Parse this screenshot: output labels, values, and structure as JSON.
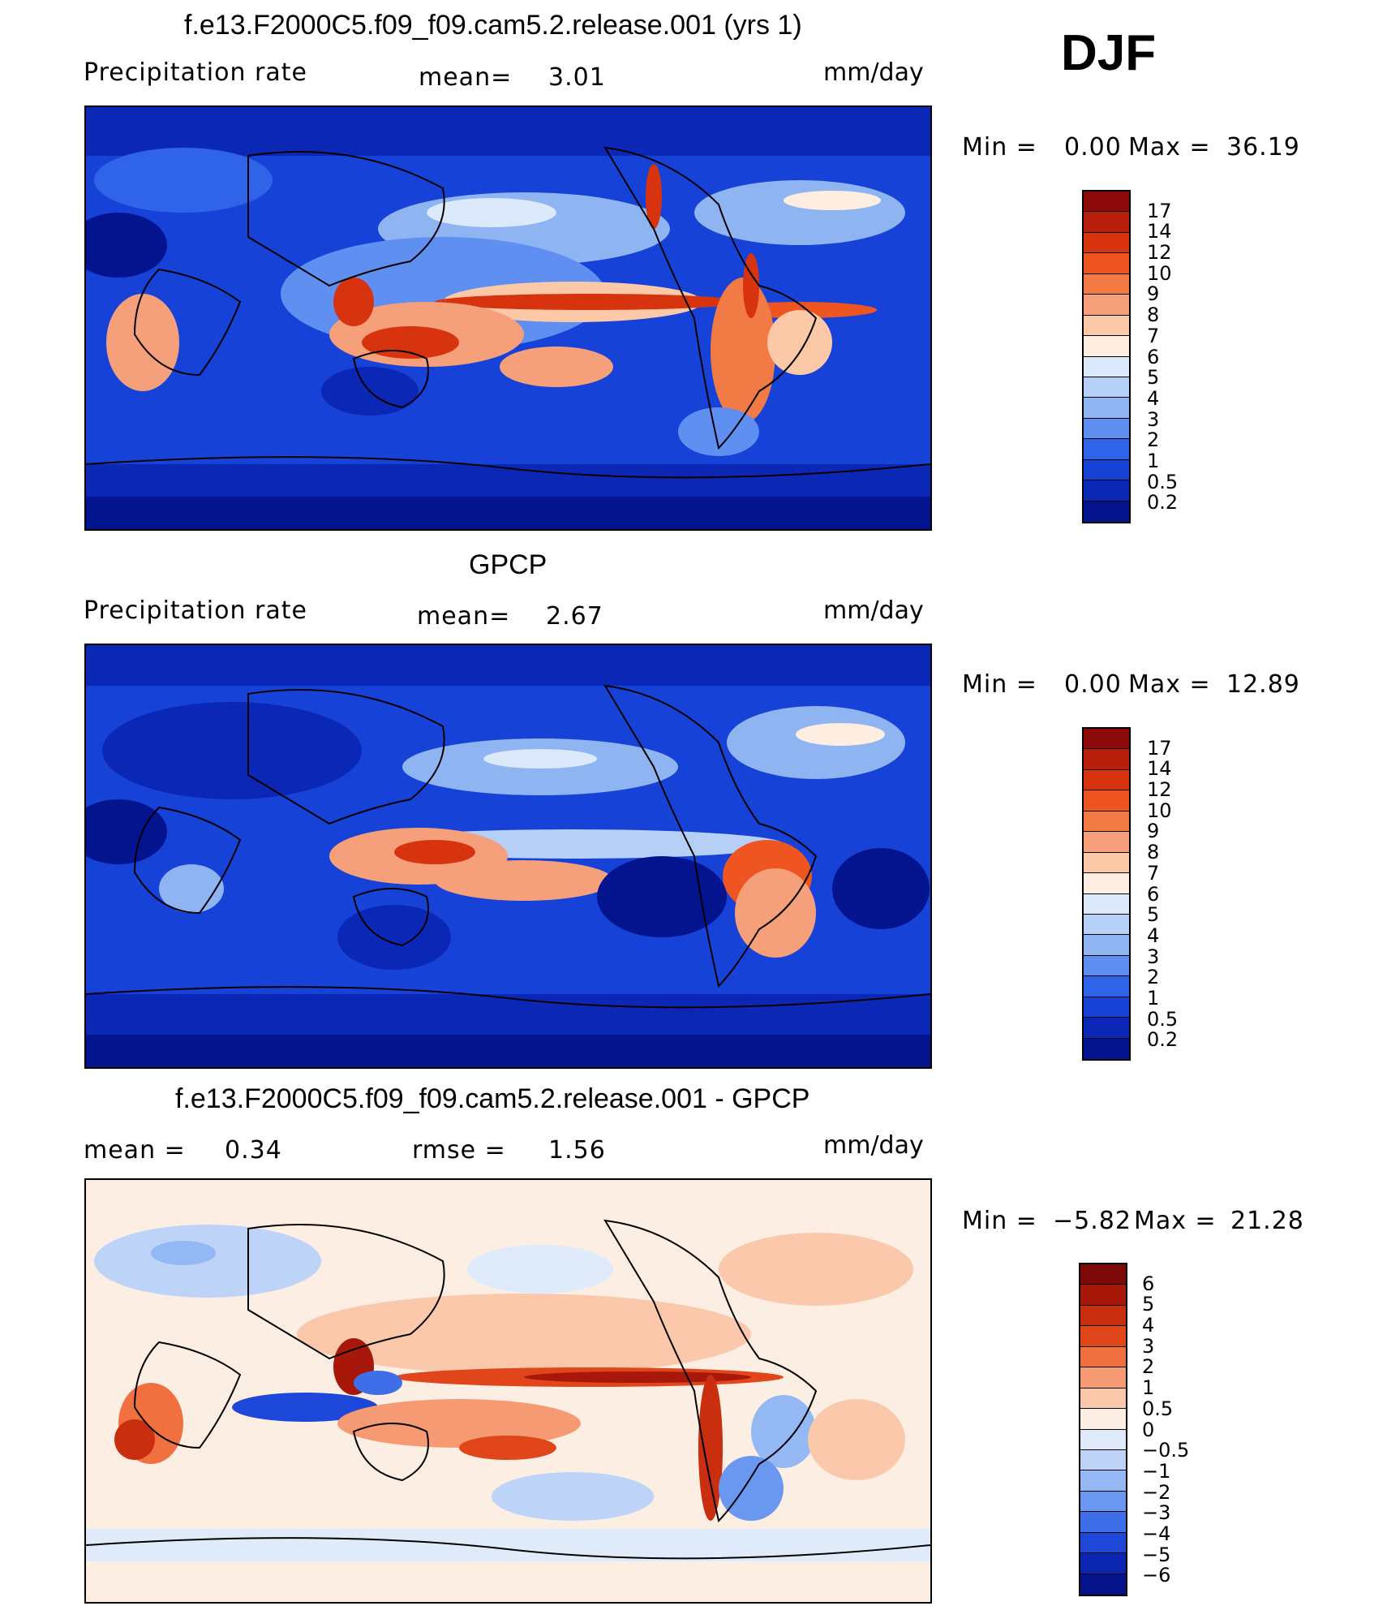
{
  "season": "DJF",
  "panels": [
    {
      "title": "f.e13.F2000C5.f09_f09.cam5.2.release.001 (yrs 1)",
      "variable": "Precipitation  rate",
      "stat1": "mean=",
      "stat1_value": "3.01",
      "stat2": "",
      "stat2_value": "",
      "units": "mm/day",
      "min_label": "Min  =",
      "min_value": "0.00",
      "max_label": "Max  =",
      "max_value": "36.19",
      "levels": [
        "17",
        "14",
        "12",
        "10",
        "9",
        "8",
        "7",
        "6",
        "5",
        "4",
        "3",
        "2",
        "1",
        "0.5",
        "0.2"
      ],
      "colors": [
        "#8c0a0a",
        "#b81e0c",
        "#d8330f",
        "#ee5520",
        "#f27a45",
        "#f5a07a",
        "#fbc9a8",
        "#fdeee1",
        "#dbe9fb",
        "#b6cff7",
        "#8fb4f2",
        "#5f8ff0",
        "#2f64e8",
        "#1642d8",
        "#0b27b6",
        "#04138e"
      ]
    },
    {
      "title": "GPCP",
      "variable": "Precipitation  rate",
      "stat1": "mean=",
      "stat1_value": "2.67",
      "stat2": "",
      "stat2_value": "",
      "units": "mm/day",
      "min_label": "Min  =",
      "min_value": "0.00",
      "max_label": "Max  =",
      "max_value": "12.89",
      "levels": [
        "17",
        "14",
        "12",
        "10",
        "9",
        "8",
        "7",
        "6",
        "5",
        "4",
        "3",
        "2",
        "1",
        "0.5",
        "0.2"
      ],
      "colors": [
        "#8c0a0a",
        "#b81e0c",
        "#d8330f",
        "#ee5520",
        "#f27a45",
        "#f5a07a",
        "#fbc9a8",
        "#fdeee1",
        "#dbe9fb",
        "#b6cff7",
        "#8fb4f2",
        "#5f8ff0",
        "#2f64e8",
        "#1642d8",
        "#0b27b6",
        "#04138e"
      ]
    },
    {
      "title": "f.e13.F2000C5.f09_f09.cam5.2.release.001 - GPCP",
      "variable": "",
      "stat1": "mean  =",
      "stat1_value": "0.34",
      "stat2": "rmse  =",
      "stat2_value": "1.56",
      "units": "mm/day",
      "min_label": "Min  =",
      "min_value": "−5.82",
      "max_label": "Max  =",
      "max_value": "21.28",
      "levels": [
        "6",
        "5",
        "4",
        "3",
        "2",
        "1",
        "0.5",
        "0",
        "−0.5",
        "−1",
        "−2",
        "−3",
        "−4",
        "−5",
        "−6"
      ],
      "colors": [
        "#7d0808",
        "#a8180a",
        "#c92e0e",
        "#e0461a",
        "#f07040",
        "#f59a72",
        "#fbc8ab",
        "#fdeee3",
        "#dfeafb",
        "#bdd4f8",
        "#93b8f4",
        "#6a97ef",
        "#3f6fe8",
        "#1c47d8",
        "#0a26b0",
        "#05128a"
      ]
    }
  ]
}
